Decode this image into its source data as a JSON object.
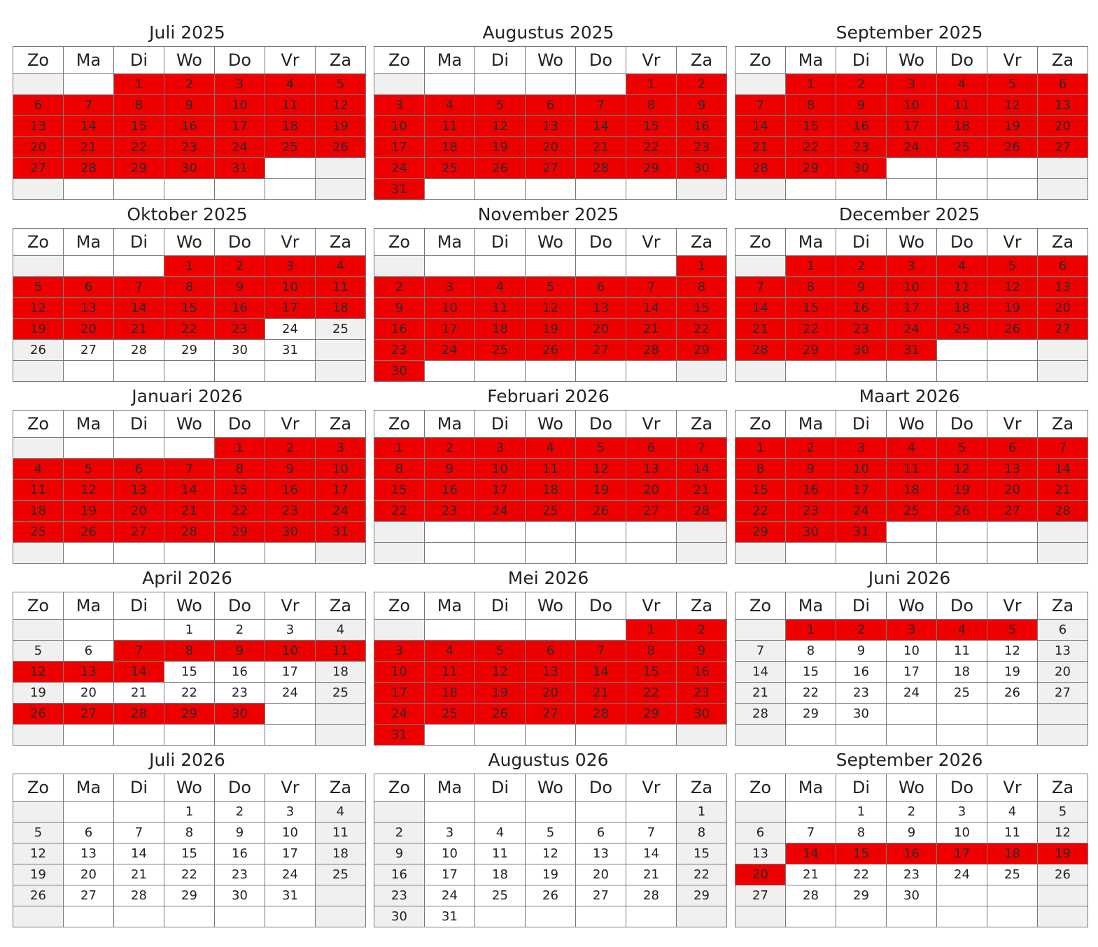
{
  "weekdays": [
    "Zo",
    "Ma",
    "Di",
    "Wo",
    "Do",
    "Vr",
    "Za"
  ],
  "colors": {
    "highlight": "#ee0000",
    "weekend": "#f0f0f0",
    "border": "#777777",
    "text": "#222222"
  },
  "months": [
    {
      "title": "Juli 2025",
      "start": 2,
      "days": 31,
      "highlighted": [
        [
          1,
          31
        ]
      ]
    },
    {
      "title": "Augustus 2025",
      "start": 5,
      "days": 31,
      "highlighted": [
        [
          1,
          31
        ]
      ]
    },
    {
      "title": "September 2025",
      "start": 1,
      "days": 30,
      "highlighted": [
        [
          1,
          30
        ]
      ]
    },
    {
      "title": "Oktober 2025",
      "start": 3,
      "days": 31,
      "highlighted": [
        [
          1,
          23
        ]
      ]
    },
    {
      "title": "November 2025",
      "start": 6,
      "days": 30,
      "highlighted": [
        [
          1,
          30
        ]
      ]
    },
    {
      "title": "December 2025",
      "start": 1,
      "days": 31,
      "highlighted": [
        [
          1,
          31
        ]
      ]
    },
    {
      "title": "Januari 2026",
      "start": 4,
      "days": 31,
      "highlighted": [
        [
          1,
          31
        ]
      ]
    },
    {
      "title": "Februari 2026",
      "start": 0,
      "days": 28,
      "highlighted": [
        [
          1,
          28
        ]
      ]
    },
    {
      "title": "Maart 2026",
      "start": 0,
      "days": 31,
      "highlighted": [
        [
          1,
          31
        ]
      ]
    },
    {
      "title": "April 2026",
      "start": 3,
      "days": 30,
      "highlighted": [
        [
          7,
          14
        ],
        [
          26,
          30
        ]
      ]
    },
    {
      "title": "Mei 2026",
      "start": 5,
      "days": 31,
      "highlighted": [
        [
          1,
          31
        ]
      ]
    },
    {
      "title": "Juni 2026",
      "start": 1,
      "days": 30,
      "highlighted": [
        [
          1,
          5
        ]
      ]
    },
    {
      "title": "Juli 2026",
      "start": 3,
      "days": 31,
      "highlighted": []
    },
    {
      "title": "Augustus 026",
      "start": 6,
      "days": 31,
      "highlighted": []
    },
    {
      "title": "September 2026",
      "start": 2,
      "days": 30,
      "highlighted": [
        [
          14,
          20
        ]
      ]
    }
  ]
}
